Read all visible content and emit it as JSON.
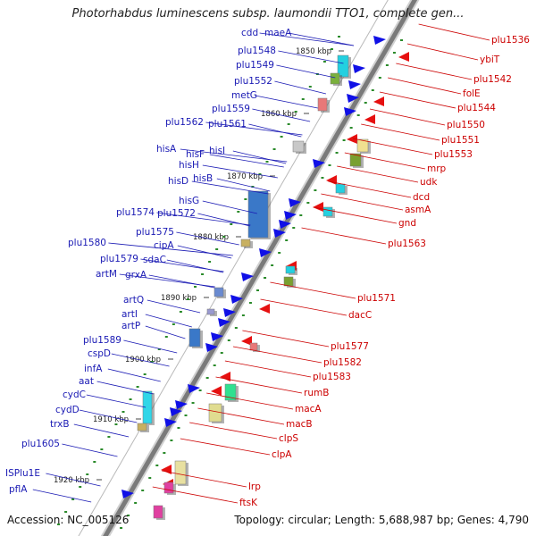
{
  "title": "Photorhabdus luminescens subsp. laumondii TTO1, complete gen...",
  "accession": "Accession: NC_005126",
  "summary": "Topology: circular; Length: 5,688,987 bp; Genes: 4,790",
  "colors": {
    "backbone": "#7a7a7a",
    "forward_label": "#1a1ab4",
    "reverse_label": "#cc0000",
    "forward_gene": "#1010e6",
    "reverse_gene": "#e61010",
    "cds_green": "#2a8a2a"
  },
  "scale_ticks": [
    "1850 kbp",
    "1860 kbp",
    "1870 kbp",
    "1880 kbp",
    "1890 kbp",
    "1900 kbp",
    "1910 kbp",
    "1920 kbp"
  ],
  "forward_genes": [
    "cdd",
    "maeA",
    "plu1548",
    "plu1549",
    "plu1552",
    "metG",
    "plu1559",
    "plu1562",
    "plu1561",
    "hisA",
    "hisF",
    "hisI",
    "hisH",
    "hisD",
    "hisB",
    "hisG",
    "plu1574",
    "plu1572",
    "plu1575",
    "cipA",
    "sdaC",
    "plu1580",
    "plu1579",
    "grxA",
    "artM",
    "artQ",
    "artI",
    "artP",
    "plu1589",
    "cspD",
    "infA",
    "aat",
    "cydC",
    "cydD",
    "trxB",
    "plu1605",
    "ISPlu1E",
    "pflA"
  ],
  "reverse_genes": [
    "plu1536",
    "ybiT",
    "plu1542",
    "folE",
    "plu1544",
    "plu1550",
    "plu1551",
    "plu1553",
    "mrp",
    "udk",
    "dcd",
    "asmA",
    "gnd",
    "plu1563",
    "plu1571",
    "dacC",
    "plu1577",
    "plu1582",
    "plu1583",
    "rumB",
    "macA",
    "macB",
    "clpS",
    "clpA",
    "lrp",
    "ftsK"
  ]
}
